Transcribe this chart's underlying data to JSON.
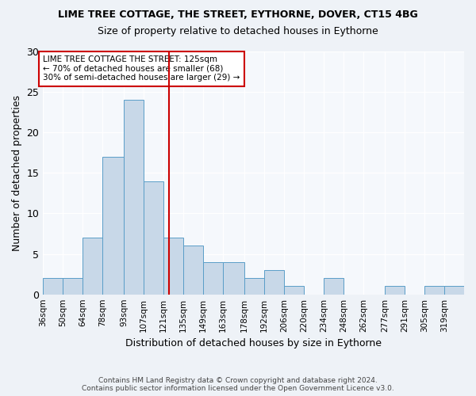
{
  "title1": "LIME TREE COTTAGE, THE STREET, EYTHORNE, DOVER, CT15 4BG",
  "title2": "Size of property relative to detached houses in Eythorne",
  "xlabel": "Distribution of detached houses by size in Eythorne",
  "ylabel": "Number of detached properties",
  "bin_labels": [
    "36sqm",
    "50sqm",
    "64sqm",
    "78sqm",
    "93sqm",
    "107sqm",
    "121sqm",
    "135sqm",
    "149sqm",
    "163sqm",
    "178sqm",
    "192sqm",
    "206sqm",
    "220sqm",
    "234sqm",
    "248sqm",
    "262sqm",
    "277sqm",
    "291sqm",
    "305sqm",
    "319sqm"
  ],
  "bin_edges": [
    36,
    50,
    64,
    78,
    93,
    107,
    121,
    135,
    149,
    163,
    178,
    192,
    206,
    220,
    234,
    248,
    262,
    277,
    291,
    305,
    319,
    333
  ],
  "bar_heights": [
    2,
    2,
    7,
    17,
    24,
    14,
    7,
    6,
    4,
    4,
    2,
    3,
    1,
    0,
    2,
    0,
    0,
    1,
    0,
    1,
    1
  ],
  "bar_color": "#c8d8e8",
  "bar_edge_color": "#5a9ec8",
  "vline_x": 125,
  "vline_color": "#cc0000",
  "annotation_text": "LIME TREE COTTAGE THE STREET: 125sqm\n← 70% of detached houses are smaller (68)\n30% of semi-detached houses are larger (29) →",
  "annotation_box_color": "#ffffff",
  "annotation_box_edge_color": "#cc0000",
  "ylim": [
    0,
    30
  ],
  "yticks": [
    0,
    5,
    10,
    15,
    20,
    25,
    30
  ],
  "footer1": "Contains HM Land Registry data © Crown copyright and database right 2024.",
  "footer2": "Contains public sector information licensed under the Open Government Licence v3.0.",
  "bg_color": "#eef2f7",
  "plot_bg_color": "#f5f8fc"
}
